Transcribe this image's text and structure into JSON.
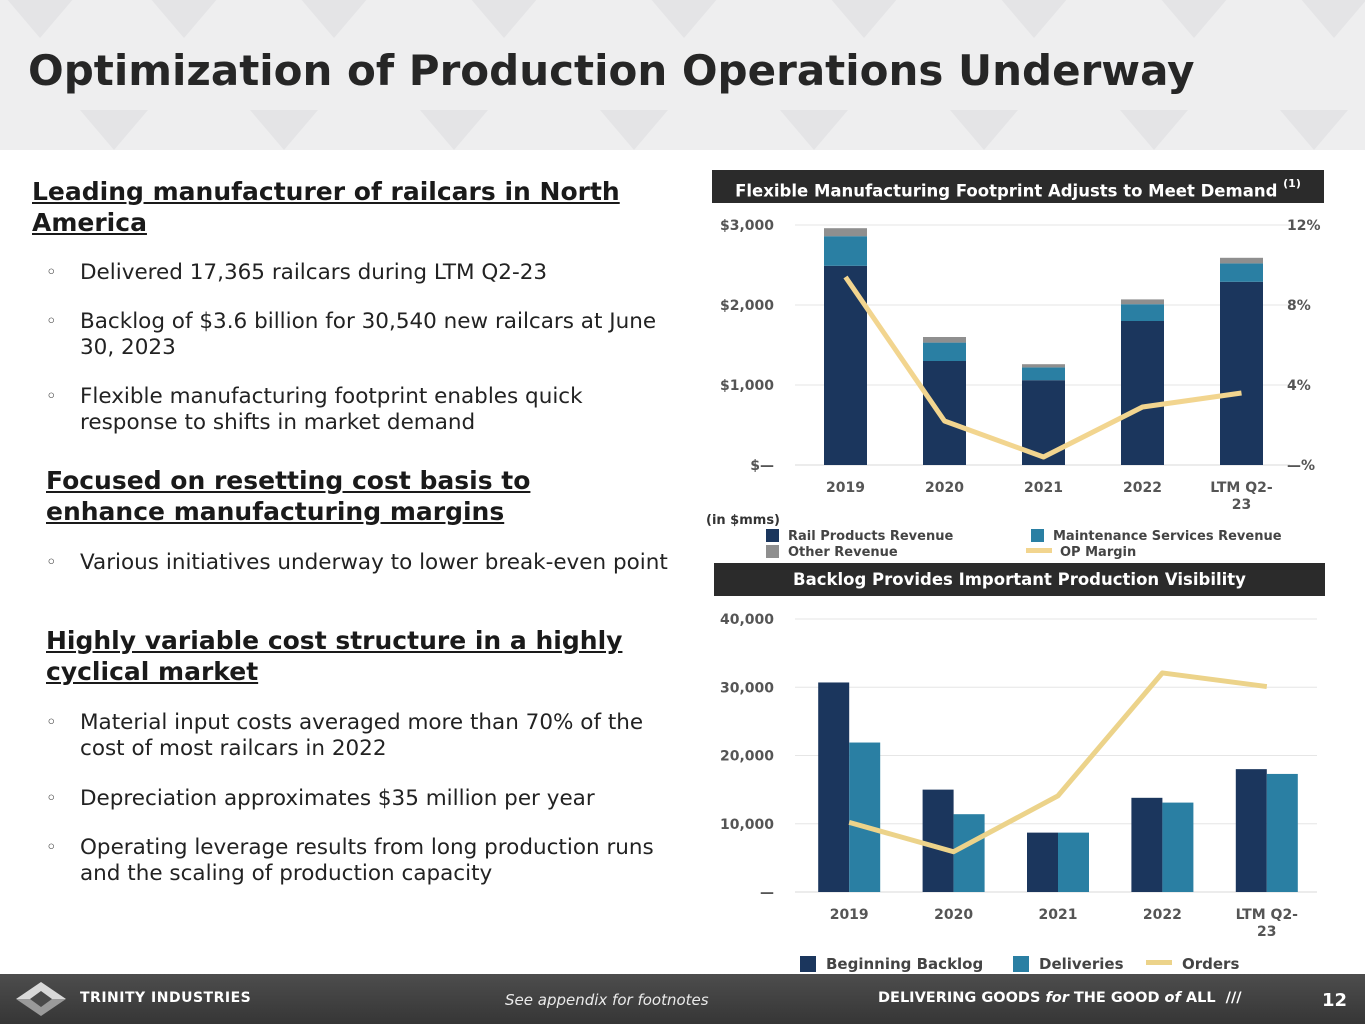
{
  "header": {
    "title": "Optimization of Production Operations Underway"
  },
  "left": {
    "sections": [
      {
        "heading": "Leading manufacturer of railcars in North America",
        "bullets": [
          "Delivered 17,365 railcars during LTM Q2-23",
          "Backlog of $3.6 billion for 30,540 new railcars at June 30, 2023",
          "Flexible manufacturing footprint enables quick response to shifts in market demand"
        ]
      },
      {
        "heading": "Focused on resetting cost basis to enhance manufacturing margins",
        "bullets": [
          "Various initiatives underway to lower break-even point"
        ]
      },
      {
        "heading": "Highly variable cost structure in a highly cyclical market",
        "bullets": [
          "Material input costs averaged more than 70% of the cost of most railcars in 2022",
          "Depreciation approximates $35 million per year",
          "Operating leverage results from long production runs and the scaling of production capacity"
        ]
      }
    ],
    "bullet_glyph": "◦"
  },
  "panels": {
    "top_title": "Flexible Manufacturing Footprint Adjusts to Meet Demand",
    "top_title_note": "(1)",
    "unit_label": "(in $mms)",
    "bottom_title": "Backlog Provides Important Production Visibility"
  },
  "colors": {
    "navy": "#1b365d",
    "teal": "#2a7fa3",
    "gray": "#8f8f8f",
    "gold": "#f2d58f",
    "gold2": "#ecd38a"
  },
  "chart_data": [
    {
      "type": "bar",
      "stacked": true,
      "categories": [
        "2019",
        "2020",
        "2021",
        "2022",
        "LTM Q2-23"
      ],
      "series": [
        {
          "name": "Rail Products Revenue",
          "values": [
            2490,
            1300,
            1060,
            1800,
            2290
          ]
        },
        {
          "name": "Maintenance Services Revenue",
          "values": [
            370,
            230,
            160,
            210,
            230
          ]
        },
        {
          "name": "Other Revenue",
          "values": [
            100,
            70,
            40,
            60,
            70
          ]
        }
      ],
      "line_series": {
        "name": "OP Margin",
        "axis": "right",
        "values": [
          9.4,
          2.2,
          0.4,
          2.9,
          3.6
        ]
      },
      "y_ticks": [
        "$—",
        "$1,000",
        "$2,000",
        "$3,000"
      ],
      "y2_ticks": [
        "—%",
        "4%",
        "8%",
        "12%"
      ],
      "ylim": [
        0,
        3000
      ],
      "y2lim": [
        0,
        12
      ],
      "grid": true,
      "legend_position": "bottom"
    },
    {
      "type": "bar",
      "categories": [
        "2019",
        "2020",
        "2021",
        "2022",
        "LTM Q2-23"
      ],
      "series": [
        {
          "name": "Beginning Backlog",
          "values": [
            30700,
            15000,
            8700,
            13800,
            18000
          ]
        },
        {
          "name": "Deliveries",
          "values": [
            21900,
            11400,
            8700,
            13100,
            17300
          ]
        }
      ],
      "line_series": {
        "name": "Orders",
        "values": [
          10200,
          5900,
          14100,
          32100,
          30100
        ]
      },
      "y_ticks": [
        "—",
        "10,000",
        "20,000",
        "30,000",
        "40,000"
      ],
      "ylim": [
        0,
        40000
      ],
      "grid": true,
      "legend_position": "bottom"
    }
  ],
  "footer": {
    "brand": "TRINITY INDUSTRIES",
    "footnote": "See appendix for footnotes",
    "tagline_1": "DELIVERING GOODS ",
    "tagline_for": "for",
    "tagline_2": " THE GOOD ",
    "tagline_of": "of",
    "tagline_3": " ALL",
    "tagline_slashes": "///",
    "page_number": "12"
  }
}
